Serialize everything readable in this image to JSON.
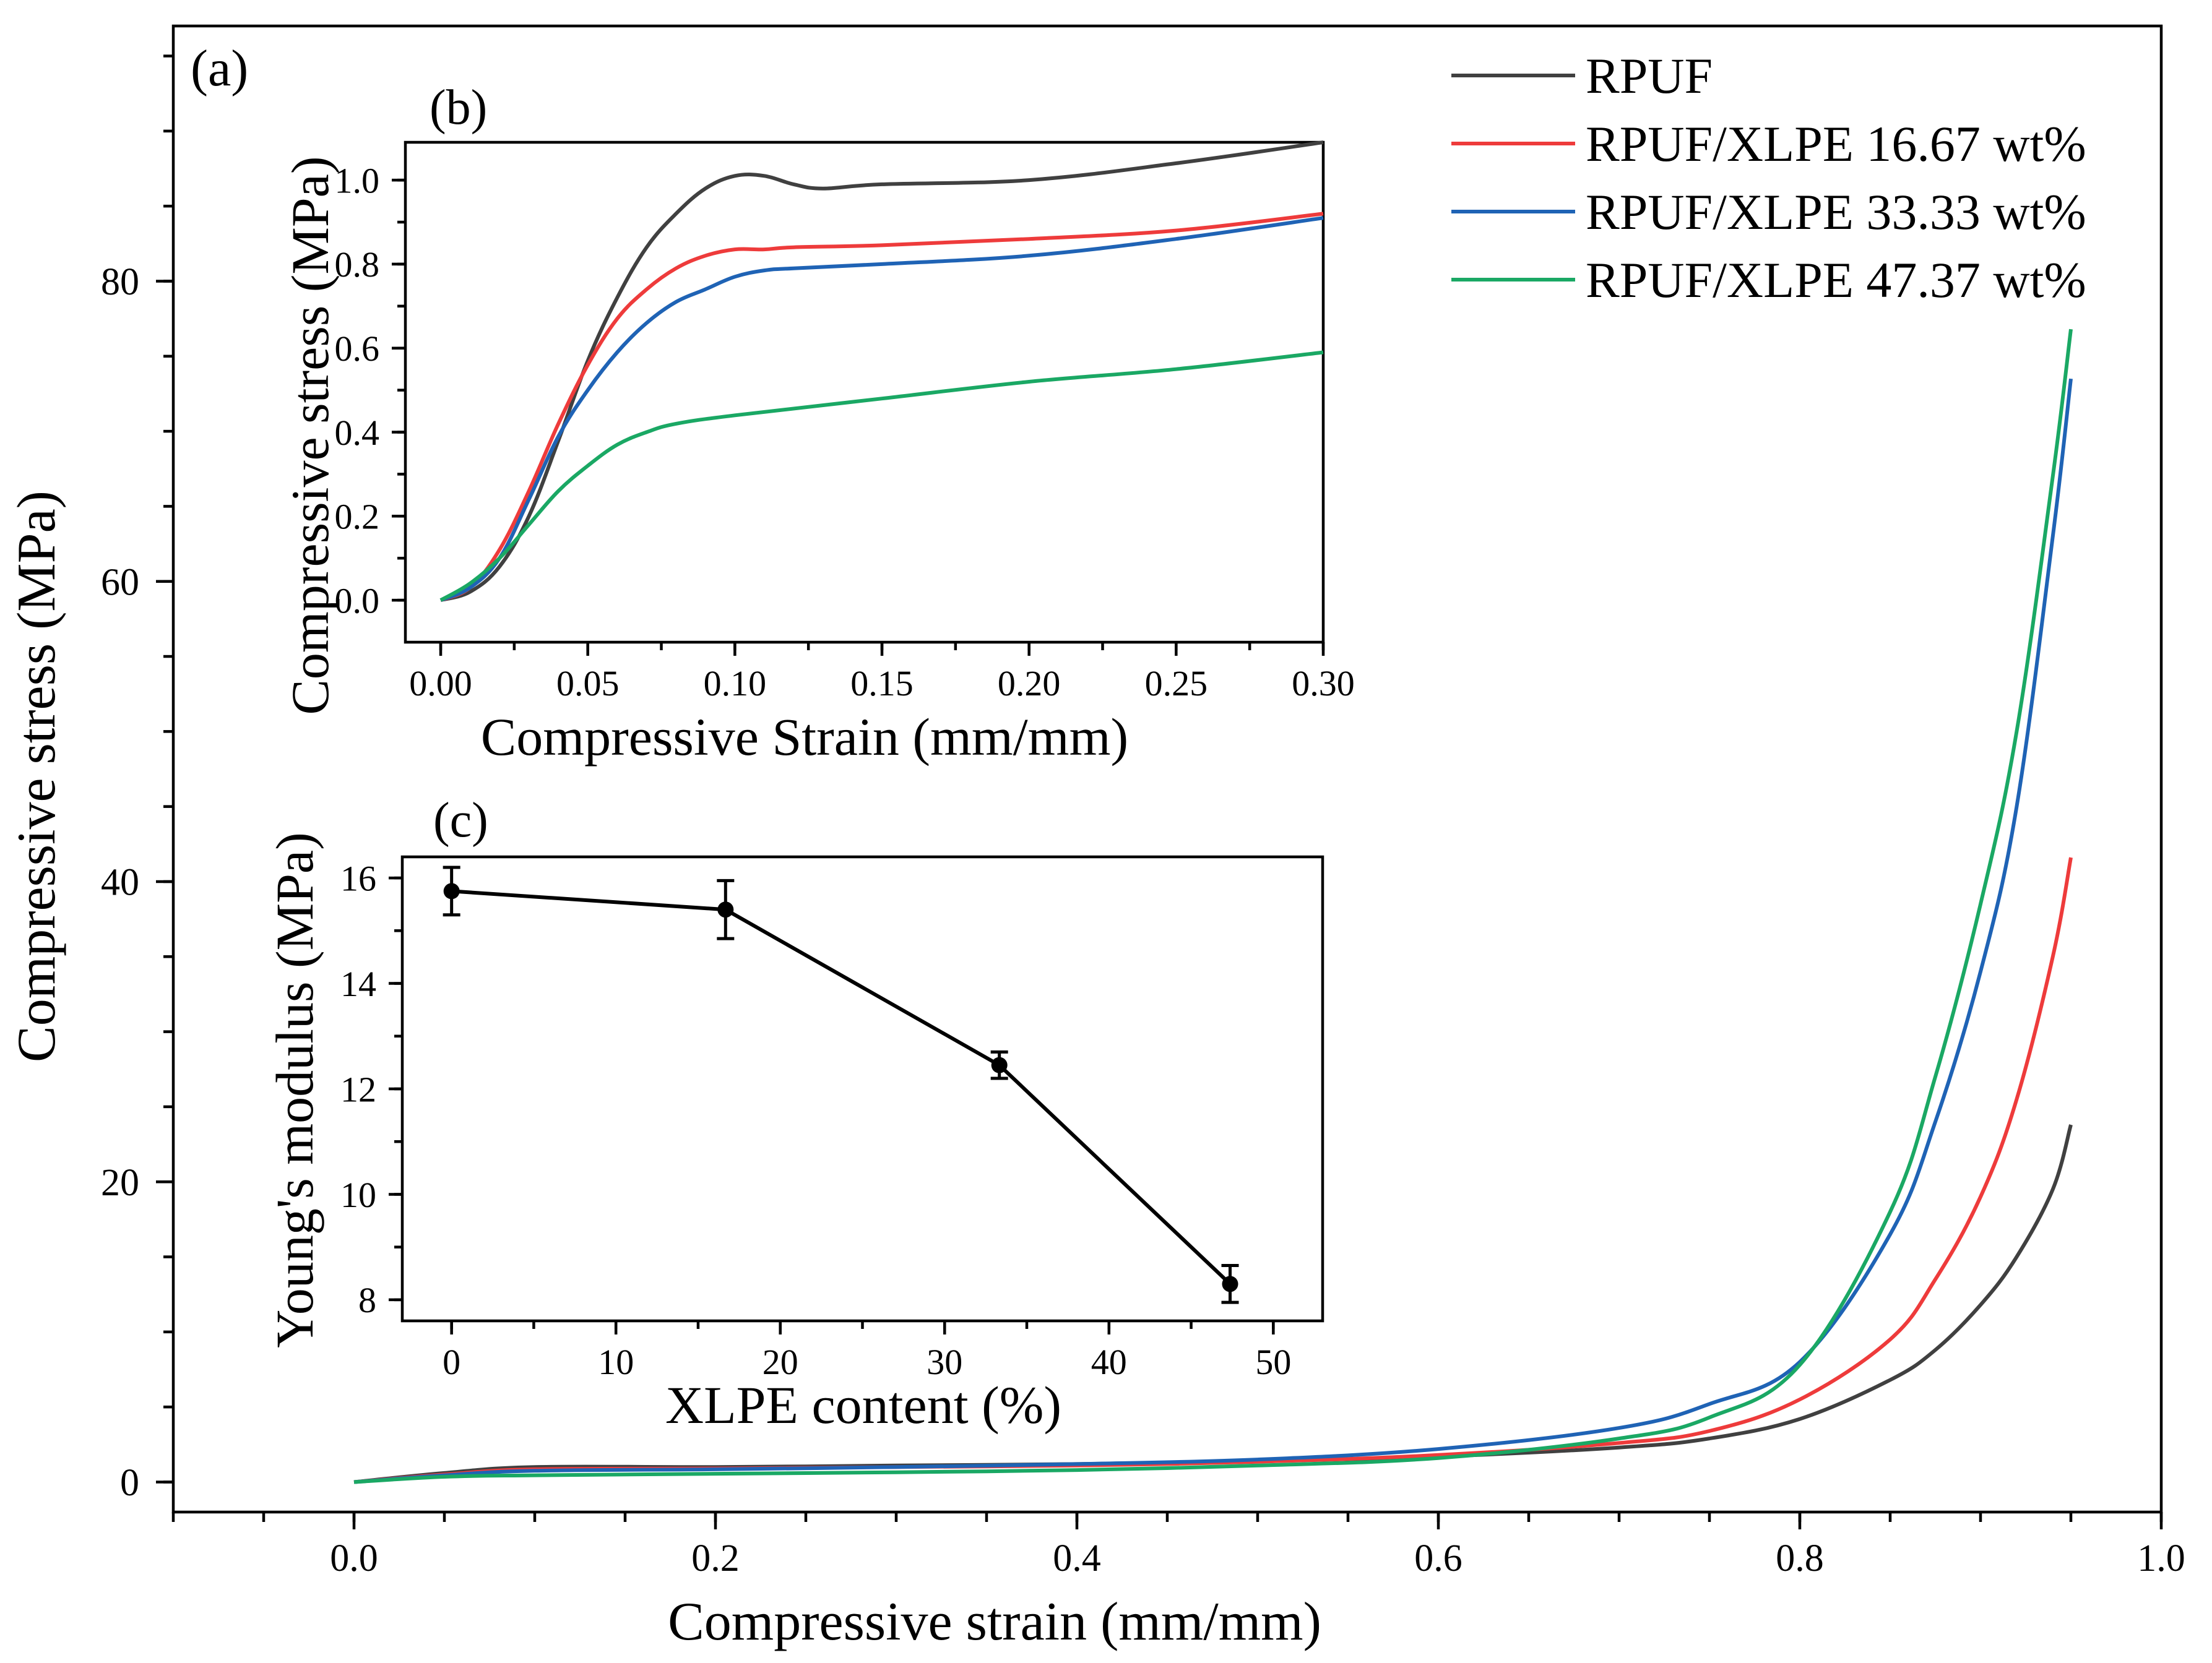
{
  "chart_data": [
    {
      "panel": "(a)",
      "type": "line",
      "xlabel": "Compressive strain (mm/mm)",
      "ylabel": "Compressive stress (MPa)",
      "xlim": [
        -0.1,
        1.0
      ],
      "ylim": [
        -2,
        97
      ],
      "xticks": [
        0.0,
        0.2,
        0.4,
        0.6,
        0.8,
        1.0
      ],
      "xtick_labels": [
        "0.0",
        "0.2",
        "0.4",
        "0.6",
        "0.8",
        "1.0"
      ],
      "yticks": [
        0,
        20,
        40,
        60,
        80
      ],
      "ytick_labels": [
        "0",
        "20",
        "40",
        "60",
        "80"
      ],
      "legend_position": "top-right",
      "series": [
        {
          "name": "RPUF",
          "color": "#404040",
          "x": [
            0,
            0.05,
            0.1,
            0.2,
            0.3,
            0.4,
            0.5,
            0.6,
            0.7,
            0.75,
            0.8,
            0.85,
            0.875,
            0.9,
            0.92,
            0.94,
            0.95
          ],
          "y": [
            0,
            0.6,
            1.0,
            1.0,
            1.1,
            1.2,
            1.4,
            1.7,
            2.3,
            2.9,
            4.2,
            6.8,
            8.8,
            11.8,
            15.0,
            19.5,
            23.8
          ]
        },
        {
          "name": "RPUF/XLPE 16.67 wt%",
          "color": "#ee3b3b",
          "x": [
            0,
            0.05,
            0.1,
            0.2,
            0.3,
            0.4,
            0.5,
            0.6,
            0.7,
            0.75,
            0.8,
            0.85,
            0.875,
            0.9,
            0.92,
            0.94,
            0.95
          ],
          "y": [
            0,
            0.5,
            0.85,
            0.9,
            1.0,
            1.1,
            1.35,
            1.8,
            2.6,
            3.4,
            5.5,
            9.5,
            13.5,
            19.0,
            25.5,
            35.0,
            41.6
          ]
        },
        {
          "name": "RPUF/XLPE 33.33 wt%",
          "color": "#1f63b5",
          "x": [
            0,
            0.05,
            0.1,
            0.2,
            0.3,
            0.4,
            0.5,
            0.6,
            0.7,
            0.75,
            0.8,
            0.85,
            0.875,
            0.9,
            0.92,
            0.94,
            0.95
          ],
          "y": [
            0,
            0.45,
            0.75,
            0.85,
            1.0,
            1.2,
            1.5,
            2.2,
            3.6,
            5.2,
            8.0,
            16.5,
            24.0,
            34.0,
            45.0,
            63.0,
            73.5
          ]
        },
        {
          "name": "RPUF/XLPE 47.37 wt%",
          "color": "#1aa864",
          "x": [
            0,
            0.05,
            0.1,
            0.2,
            0.3,
            0.4,
            0.5,
            0.6,
            0.7,
            0.75,
            0.8,
            0.85,
            0.875,
            0.9,
            0.92,
            0.94,
            0.95
          ],
          "y": [
            0,
            0.35,
            0.45,
            0.55,
            0.65,
            0.8,
            1.1,
            1.6,
            2.9,
            4.3,
            7.8,
            18.0,
            27.0,
            38.5,
            50.0,
            67.0,
            76.8
          ]
        }
      ]
    },
    {
      "panel": "(b)",
      "type": "line",
      "xlabel": "Compressive Strain (mm/mm)",
      "ylabel": "Compressive stress (MPa)",
      "xlim": [
        -0.012,
        0.3
      ],
      "ylim": [
        -0.1,
        1.09
      ],
      "xticks": [
        0.0,
        0.05,
        0.1,
        0.15,
        0.2,
        0.25,
        0.3
      ],
      "xtick_labels": [
        "0.00",
        "0.05",
        "0.10",
        "0.15",
        "0.20",
        "0.25",
        "0.30"
      ],
      "yticks": [
        0.0,
        0.2,
        0.4,
        0.6,
        0.8,
        1.0
      ],
      "ytick_labels": [
        "0.0",
        "0.2",
        "0.4",
        "0.6",
        "0.8",
        "1.0"
      ],
      "series": [
        {
          "name": "RPUF",
          "color": "#404040",
          "x": [
            0,
            0.01,
            0.02,
            0.03,
            0.04,
            0.05,
            0.06,
            0.07,
            0.08,
            0.09,
            0.1,
            0.11,
            0.12,
            0.13,
            0.15,
            0.2,
            0.25,
            0.3
          ],
          "y": [
            0,
            0.02,
            0.08,
            0.2,
            0.38,
            0.57,
            0.72,
            0.84,
            0.92,
            0.98,
            1.01,
            1.01,
            0.99,
            0.98,
            0.99,
            1.0,
            1.04,
            1.09
          ]
        },
        {
          "name": "RPUF/XLPE 16.67 wt%",
          "color": "#ee3b3b",
          "x": [
            0,
            0.01,
            0.02,
            0.03,
            0.04,
            0.05,
            0.06,
            0.07,
            0.08,
            0.09,
            0.1,
            0.11,
            0.12,
            0.15,
            0.2,
            0.25,
            0.3
          ],
          "y": [
            0,
            0.03,
            0.12,
            0.26,
            0.42,
            0.56,
            0.67,
            0.74,
            0.79,
            0.82,
            0.835,
            0.835,
            0.84,
            0.845,
            0.86,
            0.88,
            0.92
          ]
        },
        {
          "name": "RPUF/XLPE 33.33 wt%",
          "color": "#1f63b5",
          "x": [
            0,
            0.01,
            0.02,
            0.03,
            0.04,
            0.05,
            0.06,
            0.07,
            0.08,
            0.09,
            0.1,
            0.11,
            0.12,
            0.15,
            0.2,
            0.25,
            0.3
          ],
          "y": [
            0,
            0.03,
            0.1,
            0.24,
            0.39,
            0.5,
            0.59,
            0.66,
            0.71,
            0.74,
            0.77,
            0.785,
            0.79,
            0.8,
            0.82,
            0.86,
            0.91
          ]
        },
        {
          "name": "RPUF/XLPE 47.37 wt%",
          "color": "#1aa864",
          "x": [
            0,
            0.01,
            0.02,
            0.03,
            0.04,
            0.05,
            0.06,
            0.07,
            0.08,
            0.1,
            0.15,
            0.2,
            0.25,
            0.3
          ],
          "y": [
            0,
            0.04,
            0.1,
            0.18,
            0.26,
            0.32,
            0.37,
            0.4,
            0.42,
            0.44,
            0.48,
            0.52,
            0.55,
            0.59
          ]
        }
      ]
    },
    {
      "panel": "(c)",
      "type": "line",
      "xlabel": "XLPE content (%)",
      "ylabel": "Young's modulus (MPa)",
      "xlim": [
        -3,
        53
      ],
      "ylim": [
        7.6,
        16.4
      ],
      "xticks": [
        0,
        10,
        20,
        30,
        40,
        50
      ],
      "xtick_labels": [
        "0",
        "10",
        "20",
        "30",
        "40",
        "50"
      ],
      "yticks": [
        8,
        10,
        12,
        14,
        16
      ],
      "ytick_labels": [
        "8",
        "10",
        "12",
        "14",
        "16"
      ],
      "series": [
        {
          "name": "Young's modulus",
          "color": "#000000",
          "x": [
            0,
            16.67,
            33.33,
            47.37
          ],
          "y": [
            15.75,
            15.4,
            12.45,
            8.3
          ],
          "error": [
            0.45,
            0.55,
            0.25,
            0.35
          ]
        }
      ]
    }
  ],
  "labels": {
    "a": "(a)",
    "b": "(b)",
    "c": "(c)"
  }
}
